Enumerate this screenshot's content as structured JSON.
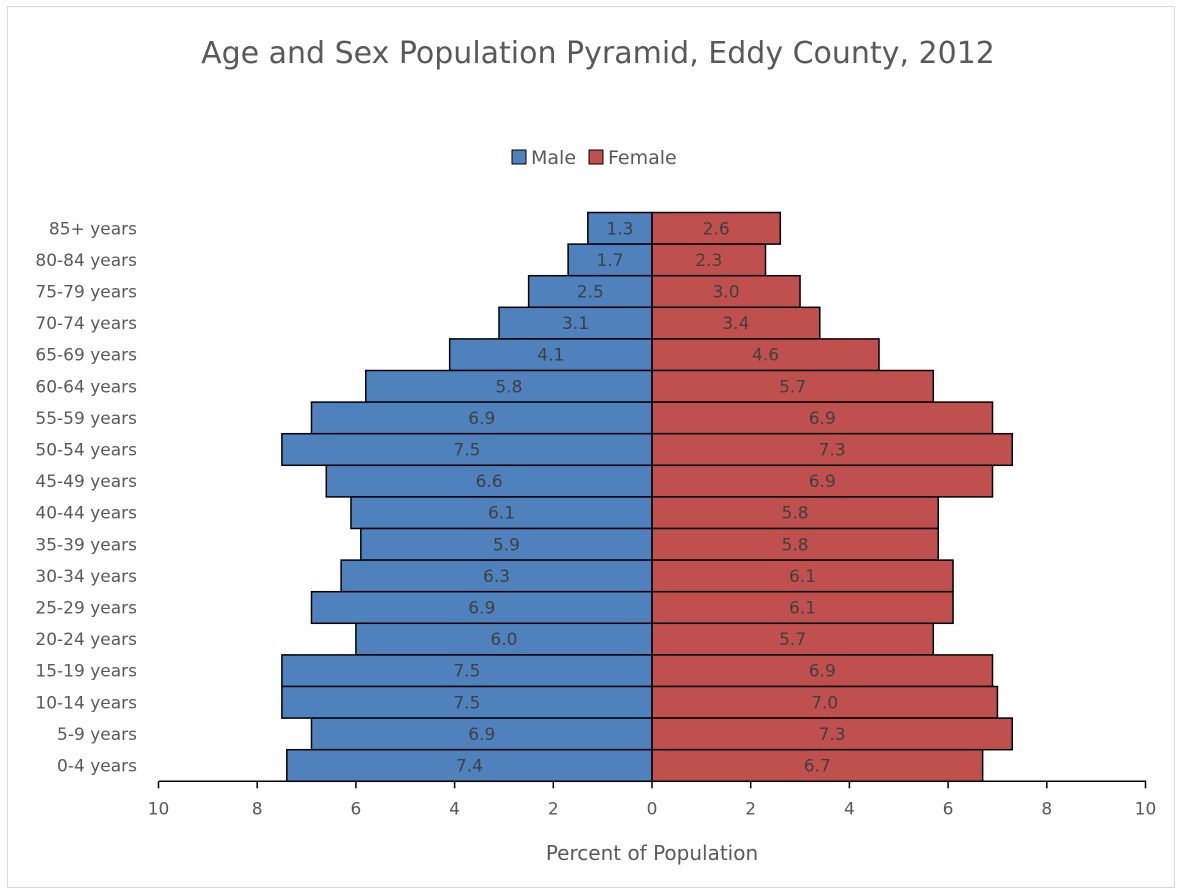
{
  "chart_data": {
    "type": "bar",
    "orientation": "horizontal",
    "title": "Age and Sex Population Pyramid, Eddy County, 2012",
    "xlabel": "Percent of Population",
    "ylabel": "",
    "xlim": [
      -10,
      10
    ],
    "x_ticks": [
      -10,
      -8,
      -6,
      -4,
      -2,
      0,
      2,
      4,
      6,
      8,
      10
    ],
    "x_tick_labels": [
      "10",
      "8",
      "6",
      "4",
      "2",
      "0",
      "2",
      "4",
      "6",
      "8",
      "10"
    ],
    "grid": false,
    "legend_position": "top",
    "categories": [
      "85+ years",
      "80-84 years",
      "75-79 years",
      "70-74 years",
      "65-69 years",
      "60-64 years",
      "55-59 years",
      "50-54 years",
      "45-49 years",
      "40-44 years",
      "35-39 years",
      "30-34 years",
      "25-29 years",
      "20-24 years",
      "15-19 years",
      "10-14 years",
      "5-9 years",
      "0-4 years"
    ],
    "series": [
      {
        "name": "Male",
        "side": "left",
        "color": "#4f81bd",
        "values": [
          1.3,
          1.7,
          2.5,
          3.1,
          4.1,
          5.8,
          6.9,
          7.5,
          6.6,
          6.1,
          5.9,
          6.3,
          6.9,
          6.0,
          7.5,
          7.5,
          6.9,
          7.4
        ],
        "labels": [
          "1.3",
          "1.7",
          "2.5",
          "3.1",
          "4.1",
          "5.8",
          "6.9",
          "7.5",
          "6.6",
          "6.1",
          "5.9",
          "6.3",
          "6.9",
          "6.0",
          "7.5",
          "7.5",
          "6.9",
          "7.4"
        ]
      },
      {
        "name": "Female",
        "side": "right",
        "color": "#c0504d",
        "values": [
          2.6,
          2.3,
          3.0,
          3.4,
          4.6,
          5.7,
          6.9,
          7.3,
          6.9,
          5.8,
          5.8,
          6.1,
          6.1,
          5.7,
          6.9,
          7.0,
          7.3,
          6.7
        ],
        "labels": [
          "2.6",
          "2.3",
          "3.0",
          "3.4",
          "4.6",
          "5.7",
          "6.9",
          "7.3",
          "6.9",
          "5.8",
          "5.8",
          "6.1",
          "6.1",
          "5.7",
          "6.9",
          "7.0",
          "7.3",
          "6.7"
        ]
      }
    ]
  }
}
